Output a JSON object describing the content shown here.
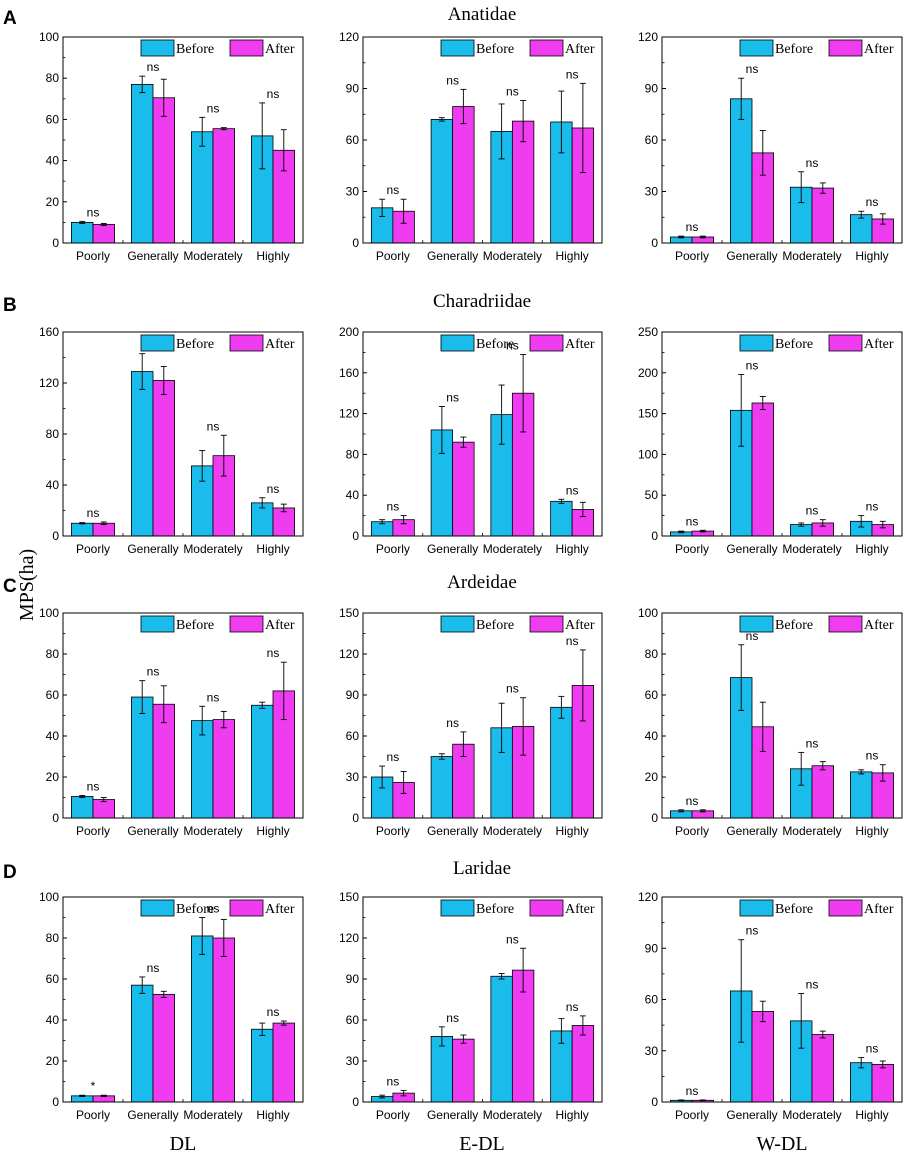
{
  "figure": {
    "y_axis_label": "MPS(ha)",
    "column_labels": [
      "DL",
      "E-DL",
      "W-DL"
    ],
    "colors": {
      "before": "#1ABCEC",
      "after": "#F03CF0"
    }
  },
  "chart_data": [
    {
      "type": "bar",
      "row": "A",
      "family": "Anatidae",
      "panel": "DL",
      "categories": [
        "Poorly",
        "Generally",
        "Moderately",
        "Highly"
      ],
      "legend": [
        "Before",
        "After"
      ],
      "ylim": [
        0,
        100
      ],
      "yticks": [
        0,
        20,
        40,
        60,
        80,
        100
      ],
      "series": [
        {
          "name": "Before",
          "values": [
            10,
            77,
            54,
            52
          ],
          "errors": [
            0.5,
            4,
            7,
            16
          ]
        },
        {
          "name": "After",
          "values": [
            9,
            70.5,
            55.5,
            45
          ],
          "errors": [
            0.5,
            9,
            0.5,
            10
          ]
        }
      ],
      "significance": [
        "ns",
        "ns",
        "ns",
        "ns"
      ]
    },
    {
      "type": "bar",
      "row": "A",
      "family": "Anatidae",
      "panel": "E-DL",
      "categories": [
        "Poorly",
        "Generally",
        "Moderately",
        "Highly"
      ],
      "legend": [
        "Before",
        "After"
      ],
      "ylim": [
        0,
        120
      ],
      "yticks": [
        0,
        30,
        60,
        90,
        120
      ],
      "series": [
        {
          "name": "Before",
          "values": [
            20.5,
            72,
            65,
            70.5
          ],
          "errors": [
            5,
            1,
            16,
            18
          ]
        },
        {
          "name": "After",
          "values": [
            18.5,
            79.5,
            71,
            67
          ],
          "errors": [
            7,
            10,
            12,
            26
          ]
        }
      ],
      "significance": [
        "ns",
        "ns",
        "ns",
        "ns"
      ]
    },
    {
      "type": "bar",
      "row": "A",
      "family": "Anatidae",
      "panel": "W-DL",
      "categories": [
        "Poorly",
        "Generally",
        "Moderately",
        "Highly"
      ],
      "legend": [
        "Before",
        "After"
      ],
      "ylim": [
        0,
        120
      ],
      "yticks": [
        0,
        30,
        60,
        90,
        120
      ],
      "series": [
        {
          "name": "Before",
          "values": [
            3.5,
            84,
            32.5,
            16.5
          ],
          "errors": [
            0.5,
            12,
            9,
            2
          ]
        },
        {
          "name": "After",
          "values": [
            3.5,
            52.5,
            32,
            14
          ],
          "errors": [
            0.5,
            13,
            3,
            3
          ]
        }
      ],
      "significance": [
        "ns",
        "ns",
        "ns",
        "ns"
      ]
    },
    {
      "type": "bar",
      "row": "B",
      "family": "Charadriidae",
      "panel": "DL",
      "categories": [
        "Poorly",
        "Generally",
        "Moderately",
        "Highly"
      ],
      "legend": [
        "Before",
        "After"
      ],
      "ylim": [
        0,
        160
      ],
      "yticks": [
        0,
        40,
        80,
        120,
        160
      ],
      "series": [
        {
          "name": "Before",
          "values": [
            10,
            129,
            55,
            26
          ],
          "errors": [
            0.5,
            14,
            12,
            4
          ]
        },
        {
          "name": "After",
          "values": [
            10,
            122,
            63,
            22
          ],
          "errors": [
            1,
            11,
            16,
            3
          ]
        }
      ],
      "significance": [
        "ns",
        "ns",
        "ns",
        "ns"
      ]
    },
    {
      "type": "bar",
      "row": "B",
      "family": "Charadriidae",
      "panel": "E-DL",
      "categories": [
        "Poorly",
        "Generally",
        "Moderately",
        "Highly"
      ],
      "legend": [
        "Before",
        "After"
      ],
      "ylim": [
        0,
        200
      ],
      "yticks": [
        0,
        40,
        80,
        120,
        160,
        200
      ],
      "series": [
        {
          "name": "Before",
          "values": [
            14,
            104,
            119,
            34
          ],
          "errors": [
            2,
            23,
            29,
            2
          ]
        },
        {
          "name": "After",
          "values": [
            16,
            92,
            140,
            26
          ],
          "errors": [
            4,
            5,
            38,
            7
          ]
        }
      ],
      "significance": [
        "ns",
        "ns",
        "ns",
        "ns"
      ]
    },
    {
      "type": "bar",
      "row": "B",
      "family": "Charadriidae",
      "panel": "W-DL",
      "categories": [
        "Poorly",
        "Generally",
        "Moderately",
        "Highly"
      ],
      "legend": [
        "Before",
        "After"
      ],
      "ylim": [
        0,
        250
      ],
      "yticks": [
        0,
        50,
        100,
        150,
        200,
        250
      ],
      "series": [
        {
          "name": "Before",
          "values": [
            5,
            154,
            14,
            18
          ],
          "errors": [
            1,
            44,
            2,
            7
          ]
        },
        {
          "name": "After",
          "values": [
            6,
            163,
            16,
            14
          ],
          "errors": [
            1,
            8,
            4,
            4
          ]
        }
      ],
      "significance": [
        "ns",
        "ns",
        "ns",
        "ns"
      ]
    },
    {
      "type": "bar",
      "row": "C",
      "family": "Ardeidae",
      "panel": "DL",
      "categories": [
        "Poorly",
        "Generally",
        "Moderately",
        "Highly"
      ],
      "legend": [
        "Before",
        "After"
      ],
      "ylim": [
        0,
        100
      ],
      "yticks": [
        0,
        20,
        40,
        60,
        80,
        100
      ],
      "series": [
        {
          "name": "Before",
          "values": [
            10.5,
            59,
            47.5,
            55
          ],
          "errors": [
            0.5,
            8,
            7,
            1.5
          ]
        },
        {
          "name": "After",
          "values": [
            9,
            55.5,
            48,
            62
          ],
          "errors": [
            1,
            9,
            4,
            14
          ]
        }
      ],
      "significance": [
        "ns",
        "ns",
        "ns",
        "ns"
      ]
    },
    {
      "type": "bar",
      "row": "C",
      "family": "Ardeidae",
      "panel": "E-DL",
      "categories": [
        "Poorly",
        "Generally",
        "Moderately",
        "Highly"
      ],
      "legend": [
        "Before",
        "After"
      ],
      "ylim": [
        0,
        150
      ],
      "yticks": [
        0,
        30,
        60,
        90,
        120,
        150
      ],
      "series": [
        {
          "name": "Before",
          "values": [
            30,
            45,
            66,
            81
          ],
          "errors": [
            8,
            2,
            18,
            8
          ]
        },
        {
          "name": "After",
          "values": [
            26,
            54,
            67,
            97
          ],
          "errors": [
            8,
            9,
            21,
            26
          ]
        }
      ],
      "significance": [
        "ns",
        "ns",
        "ns",
        "ns"
      ]
    },
    {
      "type": "bar",
      "row": "C",
      "family": "Ardeidae",
      "panel": "W-DL",
      "categories": [
        "Poorly",
        "Generally",
        "Moderately",
        "Highly"
      ],
      "legend": [
        "Before",
        "After"
      ],
      "ylim": [
        0,
        100
      ],
      "yticks": [
        0,
        20,
        40,
        60,
        80,
        100
      ],
      "series": [
        {
          "name": "Before",
          "values": [
            3.5,
            68.5,
            24,
            22.5
          ],
          "errors": [
            0.5,
            16,
            8,
            1
          ]
        },
        {
          "name": "After",
          "values": [
            3.5,
            44.5,
            25.5,
            22
          ],
          "errors": [
            0.5,
            12,
            2,
            4
          ]
        }
      ],
      "significance": [
        "ns",
        "ns",
        "ns",
        "ns"
      ]
    },
    {
      "type": "bar",
      "row": "D",
      "family": "Laridae",
      "panel": "DL",
      "categories": [
        "Poorly",
        "Generally",
        "Moderately",
        "Highly"
      ],
      "legend": [
        "Before",
        "After"
      ],
      "ylim": [
        0,
        100
      ],
      "yticks": [
        0,
        20,
        40,
        60,
        80,
        100
      ],
      "series": [
        {
          "name": "Before",
          "values": [
            3,
            57,
            81,
            35.5
          ],
          "errors": [
            0.3,
            4,
            9,
            3
          ]
        },
        {
          "name": "After",
          "values": [
            3,
            52.5,
            80,
            38.5
          ],
          "errors": [
            0.3,
            1.5,
            9,
            1
          ]
        }
      ],
      "significance": [
        "*",
        "ns",
        "ns",
        "ns"
      ]
    },
    {
      "type": "bar",
      "row": "D",
      "family": "Laridae",
      "panel": "E-DL",
      "categories": [
        "Poorly",
        "Generally",
        "Moderately",
        "Highly"
      ],
      "legend": [
        "Before",
        "After"
      ],
      "ylim": [
        0,
        150
      ],
      "yticks": [
        0,
        30,
        60,
        90,
        120,
        150
      ],
      "series": [
        {
          "name": "Before",
          "values": [
            4,
            48,
            92,
            52
          ],
          "errors": [
            1,
            7,
            2,
            9
          ]
        },
        {
          "name": "After",
          "values": [
            6.5,
            46,
            96.5,
            56
          ],
          "errors": [
            2,
            3,
            16,
            7
          ]
        }
      ],
      "significance": [
        "ns",
        "ns",
        "ns",
        "ns"
      ]
    },
    {
      "type": "bar",
      "row": "D",
      "family": "Laridae",
      "panel": "W-DL",
      "categories": [
        "Poorly",
        "Generally",
        "Moderately",
        "Highly"
      ],
      "legend": [
        "Before",
        "After"
      ],
      "ylim": [
        0,
        120
      ],
      "yticks": [
        0,
        30,
        60,
        90,
        120
      ],
      "series": [
        {
          "name": "Before",
          "values": [
            1,
            65,
            47.5,
            23
          ],
          "errors": [
            0.2,
            30,
            16,
            3
          ]
        },
        {
          "name": "After",
          "values": [
            1,
            53,
            39.5,
            22
          ],
          "errors": [
            0.2,
            6,
            2,
            2
          ]
        }
      ],
      "significance": [
        "ns",
        "ns",
        "ns",
        "ns"
      ]
    }
  ]
}
